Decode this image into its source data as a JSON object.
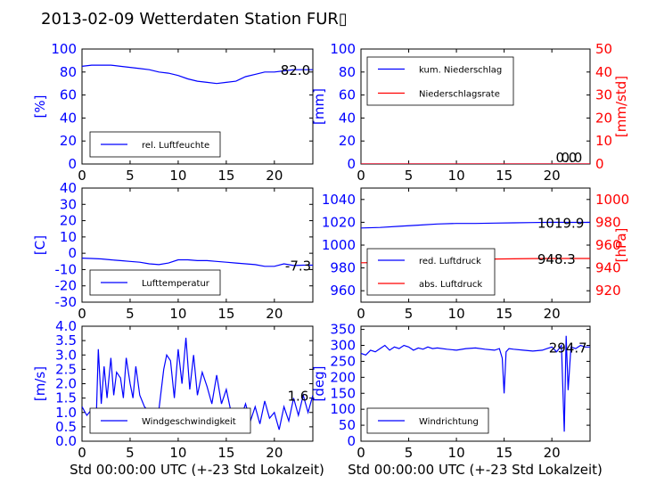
{
  "title": "2013-02-09 Wetterdaten Station FUR▯",
  "xlabel": "Std 00:00:00 UTC (+-23 Std Lokalzeit)",
  "colors": {
    "left_axis": "#0000ff",
    "right_axis": "#ff0000",
    "series_blue": "#0000ff",
    "series_red": "#ff0000"
  },
  "chart_data": [
    {
      "type": "line",
      "ylabel": "[%]",
      "xlim": [
        0,
        24
      ],
      "ylim": [
        0,
        100
      ],
      "xticks": [
        0,
        5,
        10,
        15,
        20
      ],
      "yticks": [
        0,
        20,
        40,
        60,
        80,
        100
      ],
      "legend": "bottom-left",
      "annotation": "82.0",
      "series": [
        {
          "name": "rel. Luftfeuchte",
          "axis": "left",
          "x": [
            0,
            1,
            2,
            3,
            4,
            5,
            6,
            7,
            8,
            9,
            10,
            11,
            12,
            13,
            14,
            15,
            16,
            17,
            18,
            19,
            20,
            21,
            22,
            23,
            24
          ],
          "y": [
            85,
            86,
            86,
            86,
            85,
            84,
            83,
            82,
            80,
            79,
            77,
            74,
            72,
            71,
            70,
            71,
            72,
            76,
            78,
            80,
            80,
            81,
            82,
            82,
            82
          ]
        }
      ]
    },
    {
      "type": "line",
      "ylabel": "[mm]",
      "ylabel_right": "[mm/std]",
      "xlim": [
        0,
        24
      ],
      "ylim": [
        0,
        100
      ],
      "ylim_right": [
        0,
        50
      ],
      "xticks": [
        0,
        5,
        10,
        15,
        20
      ],
      "yticks": [
        0,
        20,
        40,
        60,
        80,
        100
      ],
      "yticks_right": [
        0,
        10,
        20,
        30,
        40,
        50
      ],
      "legend": "top-left",
      "annotation": "0.0",
      "annotation_right": "0.0",
      "series": [
        {
          "name": "kum. Niederschlag",
          "axis": "left",
          "x": [
            0,
            24
          ],
          "y": [
            0,
            0
          ]
        },
        {
          "name": "Niederschlagsrate",
          "axis": "right",
          "x": [
            0,
            24
          ],
          "y": [
            0,
            0
          ]
        }
      ]
    },
    {
      "type": "line",
      "ylabel": "[C]",
      "xlim": [
        0,
        24
      ],
      "ylim": [
        -30,
        40
      ],
      "xticks": [
        0,
        5,
        10,
        15,
        20
      ],
      "yticks": [
        -30,
        -20,
        -10,
        0,
        10,
        20,
        30,
        40
      ],
      "legend": "bottom-left",
      "annotation": "-7.3",
      "series": [
        {
          "name": "Lufttemperatur",
          "axis": "left",
          "x": [
            0,
            1,
            2,
            3,
            4,
            5,
            6,
            7,
            8,
            9,
            10,
            11,
            12,
            13,
            14,
            15,
            16,
            17,
            18,
            19,
            20,
            21,
            22,
            23,
            24
          ],
          "y": [
            -3,
            -3.2,
            -3.5,
            -4,
            -4.5,
            -5,
            -5.5,
            -6.5,
            -7,
            -6,
            -4,
            -4,
            -4.5,
            -4.5,
            -5,
            -5.5,
            -6,
            -6.5,
            -7,
            -8,
            -8,
            -6.5,
            -7.5,
            -7.3,
            -7.3
          ]
        }
      ]
    },
    {
      "type": "line",
      "ylabel_right": "[hPa]",
      "xlim": [
        0,
        24
      ],
      "ylim": [
        950,
        1050
      ],
      "ylim_right": [
        910,
        1010
      ],
      "xticks": [
        0,
        5,
        10,
        15,
        20
      ],
      "yticks": [
        960,
        980,
        1000,
        1020,
        1040
      ],
      "yticks_right": [
        920,
        940,
        960,
        980,
        1000
      ],
      "legend": "bottom-left",
      "annotation": "1019.9",
      "annotation_right": "948.3",
      "series": [
        {
          "name": "red. Luftdruck",
          "axis": "left",
          "x": [
            0,
            2,
            4,
            6,
            8,
            10,
            12,
            14,
            16,
            18,
            20,
            22,
            24
          ],
          "y": [
            1015,
            1015.5,
            1016.5,
            1017.5,
            1018.5,
            1019,
            1019,
            1019.3,
            1019.5,
            1019.8,
            1020,
            1019.9,
            1019.9
          ]
        },
        {
          "name": "abs. Luftdruck",
          "axis": "right",
          "x": [
            0,
            2,
            4,
            6,
            8,
            10,
            12,
            14,
            16,
            18,
            20,
            22,
            24
          ],
          "y": [
            944.5,
            944.7,
            945.3,
            946,
            947,
            947.5,
            947.6,
            947.8,
            948,
            948.2,
            948.3,
            948.3,
            948.3
          ]
        }
      ]
    },
    {
      "type": "line",
      "ylabel": "[m/s]",
      "xlim": [
        0,
        24
      ],
      "ylim": [
        0,
        4
      ],
      "xticks": [
        0,
        5,
        10,
        15,
        20
      ],
      "yticks": [
        0.0,
        0.5,
        1.0,
        1.5,
        2.0,
        2.5,
        3.0,
        3.5,
        4.0
      ],
      "legend": "bottom-left",
      "annotation": "1.6",
      "series": [
        {
          "name": "Windgeschwindigkeit",
          "axis": "left",
          "x": [
            0,
            0.5,
            1,
            1.5,
            1.7,
            2,
            2.3,
            2.6,
            3,
            3.3,
            3.6,
            4,
            4.3,
            4.6,
            5,
            5.3,
            5.6,
            6,
            6.5,
            7,
            7.5,
            8,
            8.5,
            8.8,
            9.2,
            9.6,
            10,
            10.4,
            10.8,
            11.2,
            11.6,
            12,
            12.5,
            13,
            13.5,
            14,
            14.5,
            15,
            15.5,
            16,
            16.5,
            17,
            17.5,
            18,
            18.5,
            19,
            19.5,
            20,
            20.5,
            21,
            21.5,
            22,
            22.5,
            23,
            23.5,
            24
          ],
          "y": [
            1.2,
            0.9,
            1.1,
            1.0,
            3.2,
            1.3,
            2.6,
            1.5,
            2.9,
            1.6,
            2.4,
            2.2,
            1.5,
            2.9,
            2.0,
            1.5,
            2.6,
            1.6,
            1.2,
            1.0,
            0.8,
            1.1,
            2.5,
            3.0,
            2.8,
            1.5,
            3.2,
            2.0,
            3.6,
            1.8,
            3.0,
            1.6,
            2.4,
            1.9,
            1.3,
            2.3,
            1.3,
            1.8,
            1.0,
            1.1,
            0.8,
            1.3,
            0.7,
            1.2,
            0.6,
            1.4,
            0.8,
            1.0,
            0.4,
            1.2,
            0.7,
            1.5,
            0.9,
            1.6,
            1.0,
            1.6
          ]
        }
      ]
    },
    {
      "type": "line",
      "ylabel": "[deg]",
      "xlim": [
        0,
        24
      ],
      "ylim": [
        0,
        360
      ],
      "xticks": [
        0,
        5,
        10,
        15,
        20
      ],
      "yticks": [
        0,
        50,
        100,
        150,
        200,
        250,
        300,
        350
      ],
      "legend": "bottom-left",
      "annotation": "294.7",
      "series": [
        {
          "name": "Windrichtung",
          "axis": "left",
          "x": [
            0,
            0.5,
            1,
            1.5,
            2,
            2.5,
            3,
            3.5,
            4,
            4.5,
            5,
            5.5,
            6,
            6.5,
            7,
            7.5,
            8,
            9,
            10,
            11,
            12,
            13,
            14,
            14.5,
            14.8,
            15,
            15.2,
            15.5,
            16,
            17,
            18,
            19,
            19.5,
            20,
            20.5,
            21,
            21.3,
            21.5,
            21.7,
            22,
            22.5,
            23,
            23.5,
            24
          ],
          "y": [
            275,
            270,
            285,
            280,
            290,
            300,
            285,
            295,
            290,
            300,
            295,
            285,
            292,
            288,
            295,
            290,
            292,
            288,
            285,
            290,
            292,
            288,
            285,
            290,
            260,
            150,
            280,
            290,
            288,
            285,
            282,
            285,
            290,
            295,
            280,
            300,
            30,
            330,
            160,
            295,
            290,
            300,
            295,
            295
          ]
        }
      ]
    }
  ]
}
